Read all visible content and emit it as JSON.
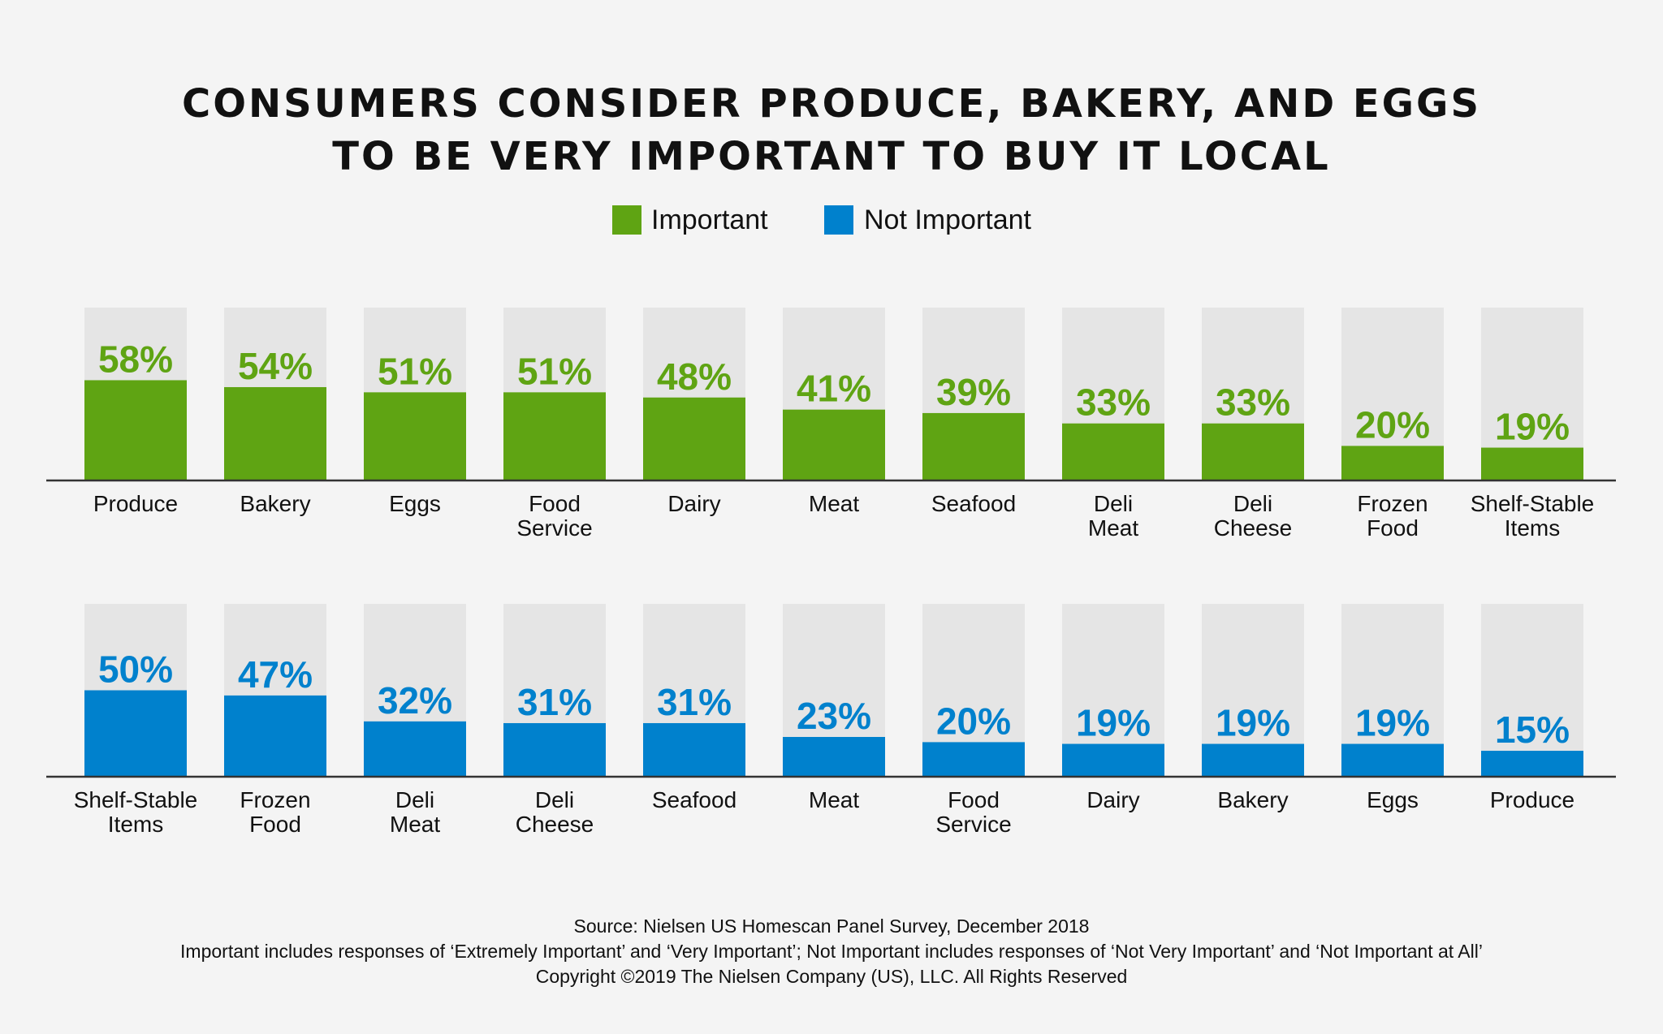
{
  "chart_data": [
    {
      "type": "bar",
      "title": "CONSUMERS CONSIDER PRODUCE, BAKERY, AND EGGS TO BE VERY IMPORTANT TO BUY IT LOCAL",
      "series_name": "Important",
      "color": "#5fa413",
      "categories": [
        [
          "Produce"
        ],
        [
          "Bakery"
        ],
        [
          "Eggs"
        ],
        [
          "Food",
          "Service"
        ],
        [
          "Dairy"
        ],
        [
          "Meat"
        ],
        [
          "Seafood"
        ],
        [
          "Deli",
          "Meat"
        ],
        [
          "Deli",
          "Cheese"
        ],
        [
          "Frozen",
          "Food"
        ],
        [
          "Shelf-Stable",
          "Items"
        ]
      ],
      "values": [
        58,
        54,
        51,
        51,
        48,
        41,
        39,
        33,
        33,
        20,
        19
      ],
      "labels": [
        "58%",
        "54%",
        "51%",
        "51%",
        "48%",
        "41%",
        "39%",
        "33%",
        "33%",
        "20%",
        "19%"
      ],
      "ylim": [
        0,
        100
      ]
    },
    {
      "type": "bar",
      "series_name": "Not Important",
      "color": "#0081cd",
      "categories": [
        [
          "Shelf-Stable",
          "Items"
        ],
        [
          "Frozen",
          "Food"
        ],
        [
          "Deli",
          "Meat"
        ],
        [
          "Deli",
          "Cheese"
        ],
        [
          "Seafood"
        ],
        [
          "Meat"
        ],
        [
          "Food",
          "Service"
        ],
        [
          "Dairy"
        ],
        [
          "Bakery"
        ],
        [
          "Eggs"
        ],
        [
          "Produce"
        ]
      ],
      "values": [
        50,
        47,
        32,
        31,
        31,
        23,
        20,
        19,
        19,
        19,
        15
      ],
      "labels": [
        "50%",
        "47%",
        "32%",
        "31%",
        "31%",
        "23%",
        "20%",
        "19%",
        "19%",
        "19%",
        "15%"
      ],
      "ylim": [
        0,
        100
      ]
    }
  ],
  "title_lines": [
    "CONSUMERS CONSIDER PRODUCE, BAKERY, AND EGGS",
    "TO BE VERY IMPORTANT TO BUY IT LOCAL"
  ],
  "legend": [
    {
      "label": "Important",
      "color": "#5fa413"
    },
    {
      "label": "Not Important",
      "color": "#0081cd"
    }
  ],
  "track_color": "#e5e5e5",
  "footer": [
    "Source: Nielsen US Homescan Panel Survey, December 2018",
    "Important includes responses of ‘Extremely Important’ and ‘Very Important’; Not Important includes responses of ‘Not Very Important’ and ‘Not Important at All’",
    "Copyright ©2019 The Nielsen Company (US), LLC. All Rights Reserved"
  ]
}
